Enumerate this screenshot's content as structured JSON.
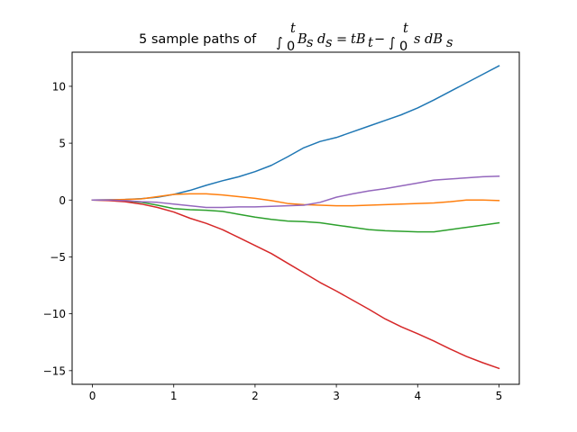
{
  "chart_data": {
    "type": "line",
    "title": "5 sample paths of ∫₀ᵗ Bₛ dₛ = tBₜ − ∫₀ᵗ s dBₛ",
    "title_parts": {
      "prefix": "5 sample paths of ",
      "int1": "∫",
      "lim_lo_1": "0",
      "lim_hi_1": "t",
      "integrand1": "B",
      "integrand1_sub": "s",
      "d1": "d",
      "d1_sub": "s",
      "equals": "=",
      "rhs_t": "tB",
      "rhs_t_sub": "t",
      "minus": "−",
      "int2": "∫",
      "lim_lo_2": "0",
      "lim_hi_2": "t",
      "integrand2": "s dB",
      "integrand2_sub": "s"
    },
    "xlabel": "",
    "ylabel": "",
    "xlim": [
      -0.25,
      5.25
    ],
    "ylim": [
      -16.2,
      13.0
    ],
    "xticks": [
      0,
      1,
      2,
      3,
      4,
      5
    ],
    "yticks": [
      -15,
      -10,
      -5,
      0,
      5,
      10
    ],
    "x": [
      0,
      0.2,
      0.4,
      0.6,
      0.8,
      1.0,
      1.2,
      1.4,
      1.6,
      1.8,
      2.0,
      2.2,
      2.4,
      2.6,
      2.8,
      3.0,
      3.2,
      3.4,
      3.6,
      3.8,
      4.0,
      4.2,
      4.4,
      4.6,
      4.8,
      5.0
    ],
    "series": [
      {
        "color": "#1f77b4",
        "values": [
          0.0,
          0.02,
          0.05,
          0.12,
          0.25,
          0.5,
          0.85,
          1.3,
          1.7,
          2.05,
          2.5,
          3.05,
          3.8,
          4.6,
          5.15,
          5.5,
          6.0,
          6.5,
          7.0,
          7.5,
          8.1,
          8.8,
          9.55,
          10.3,
          11.05,
          11.8
        ]
      },
      {
        "color": "#ff7f0e",
        "values": [
          0.0,
          0.02,
          0.05,
          0.1,
          0.3,
          0.5,
          0.55,
          0.55,
          0.45,
          0.3,
          0.15,
          -0.05,
          -0.3,
          -0.4,
          -0.45,
          -0.5,
          -0.5,
          -0.45,
          -0.4,
          -0.35,
          -0.3,
          -0.25,
          -0.15,
          0.0,
          0.0,
          -0.05
        ]
      },
      {
        "color": "#2ca02c",
        "values": [
          0.0,
          -0.02,
          -0.08,
          -0.2,
          -0.45,
          -0.75,
          -0.85,
          -0.9,
          -1.0,
          -1.25,
          -1.5,
          -1.7,
          -1.85,
          -1.9,
          -2.0,
          -2.2,
          -2.4,
          -2.6,
          -2.7,
          -2.75,
          -2.8,
          -2.8,
          -2.6,
          -2.4,
          -2.2,
          -2.0
        ]
      },
      {
        "color": "#d62728",
        "values": [
          0.0,
          -0.05,
          -0.15,
          -0.35,
          -0.65,
          -1.05,
          -1.6,
          -2.05,
          -2.6,
          -3.3,
          -4.0,
          -4.7,
          -5.55,
          -6.4,
          -7.25,
          -8.0,
          -8.8,
          -9.6,
          -10.45,
          -11.15,
          -11.75,
          -12.4,
          -13.1,
          -13.75,
          -14.3,
          -14.8
        ]
      },
      {
        "color": "#9467bd",
        "values": [
          0.0,
          0.0,
          -0.05,
          -0.15,
          -0.2,
          -0.35,
          -0.5,
          -0.65,
          -0.65,
          -0.6,
          -0.6,
          -0.55,
          -0.5,
          -0.45,
          -0.2,
          0.25,
          0.55,
          0.8,
          1.0,
          1.25,
          1.5,
          1.75,
          1.85,
          1.95,
          2.05,
          2.1
        ]
      }
    ],
    "grid": false,
    "legend": "none"
  }
}
